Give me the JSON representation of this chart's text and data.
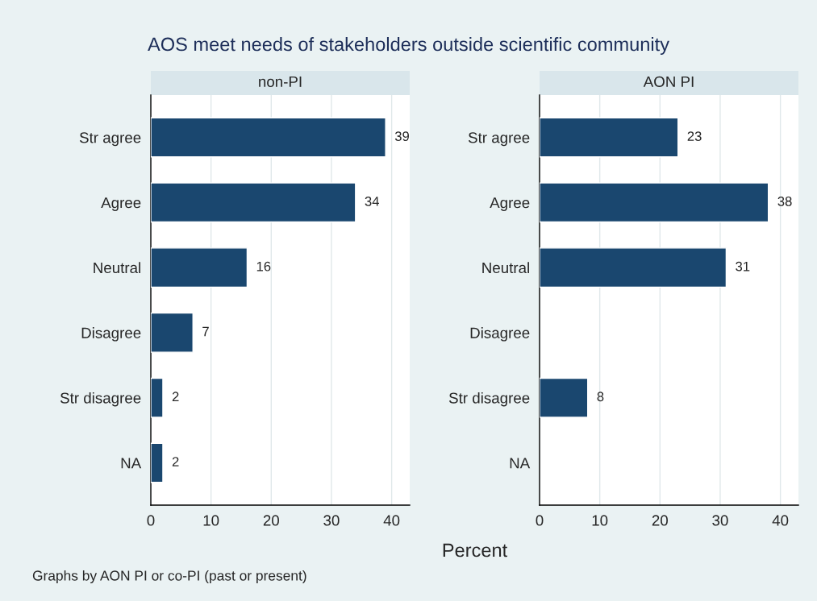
{
  "chart_data": [
    {
      "type": "bar",
      "orientation": "horizontal",
      "title": "AOS meet needs of stakeholders outside scientific community",
      "subtitle": "non-PI",
      "xlabel": "Percent",
      "categories": [
        "Str agree",
        "Agree",
        "Neutral",
        "Disagree",
        "Str disagree",
        "NA"
      ],
      "values": [
        39,
        34,
        16,
        7,
        2,
        2
      ],
      "color": "#1a476f",
      "data_labels": true,
      "xlim": [
        0,
        43
      ],
      "xticks": [
        0,
        10,
        20,
        30,
        40
      ],
      "grid": "x",
      "legend": false,
      "annotations": [
        "Graphs by AON PI or co-PI (past or present)"
      ]
    },
    {
      "type": "bar",
      "orientation": "horizontal",
      "subtitle": "AON PI",
      "categories": [
        "Str agree",
        "Agree",
        "Neutral",
        "Disagree",
        "Str disagree",
        "NA"
      ],
      "values": [
        23,
        38,
        31,
        null,
        8,
        null
      ],
      "color": "#1a476f",
      "data_labels": true,
      "xlim": [
        0,
        43
      ],
      "xticks": [
        0,
        10,
        20,
        30,
        40
      ],
      "grid": "x",
      "legend": false
    }
  ]
}
